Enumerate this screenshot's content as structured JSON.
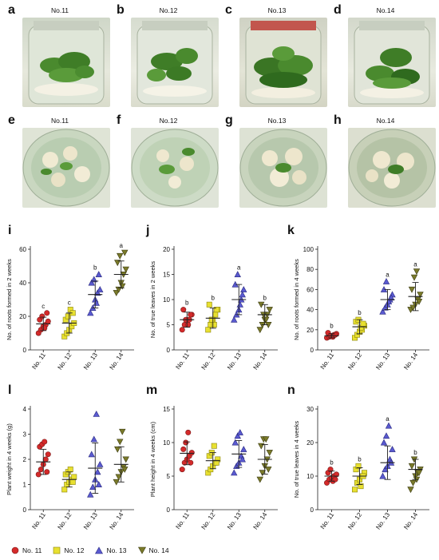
{
  "panel_letters": [
    "a",
    "b",
    "c",
    "d",
    "e",
    "f",
    "g",
    "h",
    "i",
    "j",
    "k",
    "l",
    "m",
    "n"
  ],
  "photo_captions": [
    "No.11",
    "No.12",
    "No.13",
    "No.14",
    "No.11",
    "No.12",
    "No.13",
    "No.14"
  ],
  "colors": {
    "No. 11": "#d42a2a",
    "No. 12": "#e8e030",
    "No. 13": "#5a5ad0",
    "No. 14": "#7a7a2a"
  },
  "legend": [
    {
      "label": "No. 11",
      "shape": "circle",
      "color": "#d42a2a"
    },
    {
      "label": "No. 12",
      "shape": "square",
      "color": "#e8e030"
    },
    {
      "label": "No. 13",
      "shape": "triangle-up",
      "color": "#5a5ad0"
    },
    {
      "label": "No. 14",
      "shape": "triangle-down",
      "color": "#7a7a2a"
    }
  ],
  "chart_data": [
    {
      "id": "i",
      "type": "scatter",
      "ylabel": "No. of roots formed in 2 weeks",
      "ylim": [
        0,
        60
      ],
      "yticks": [
        0,
        20,
        40,
        60
      ],
      "categories": [
        "No. 11",
        "No. 12",
        "No. 13",
        "No. 14"
      ],
      "letters": [
        "c",
        "c",
        "b",
        "a"
      ],
      "series": [
        {
          "name": "No. 11",
          "values": [
            10,
            12,
            14,
            15,
            17,
            18,
            20,
            13,
            22
          ],
          "mean": 15.5,
          "sd": 4
        },
        {
          "name": "No. 12",
          "values": [
            8,
            10,
            12,
            14,
            16,
            18,
            20,
            24,
            22
          ],
          "mean": 16,
          "sd": 6
        },
        {
          "name": "No. 13",
          "values": [
            22,
            25,
            30,
            34,
            36,
            40,
            42,
            28,
            45
          ],
          "mean": 33,
          "sd": 8
        },
        {
          "name": "No. 14",
          "values": [
            34,
            36,
            40,
            45,
            48,
            52,
            56,
            38,
            58
          ],
          "mean": 45,
          "sd": 8
        }
      ]
    },
    {
      "id": "j",
      "type": "scatter",
      "ylabel": "No. of true leaves in 2 weeks",
      "ylim": [
        0,
        20
      ],
      "yticks": [
        0,
        5,
        10,
        15,
        20
      ],
      "categories": [
        "No. 11",
        "No. 12",
        "No. 13",
        "No. 14"
      ],
      "letters": [
        "b",
        "b",
        "a",
        "b"
      ],
      "series": [
        {
          "name": "No. 11",
          "values": [
            4,
            5,
            6,
            6,
            7,
            8,
            6,
            5,
            7
          ],
          "mean": 6,
          "sd": 1.5
        },
        {
          "name": "No. 12",
          "values": [
            4,
            5,
            6,
            7,
            8,
            9,
            6,
            5,
            8
          ],
          "mean": 6.3,
          "sd": 2
        },
        {
          "name": "No. 13",
          "values": [
            6,
            7,
            8,
            10,
            12,
            13,
            15,
            9,
            11
          ],
          "mean": 10,
          "sd": 3
        },
        {
          "name": "No. 14",
          "values": [
            4,
            5,
            6,
            7,
            8,
            9,
            7,
            6,
            5
          ],
          "mean": 7,
          "sd": 2
        }
      ]
    },
    {
      "id": "k",
      "type": "scatter",
      "ylabel": "No. of roots formed in 4 weeks",
      "ylim": [
        0,
        100
      ],
      "yticks": [
        0,
        20,
        40,
        60,
        80,
        100
      ],
      "categories": [
        "No. 11",
        "No. 12",
        "No. 13",
        "No. 14"
      ],
      "letters": [
        "b",
        "b",
        "a",
        "a"
      ],
      "series": [
        {
          "name": "No. 11",
          "values": [
            12,
            13,
            14,
            15,
            16,
            17,
            14,
            13,
            15
          ],
          "mean": 14,
          "sd": 2
        },
        {
          "name": "No. 12",
          "values": [
            12,
            15,
            18,
            20,
            24,
            28,
            30,
            22,
            26
          ],
          "mean": 23,
          "sd": 7
        },
        {
          "name": "No. 13",
          "values": [
            38,
            42,
            45,
            50,
            55,
            60,
            68,
            48,
            52
          ],
          "mean": 50,
          "sd": 10
        },
        {
          "name": "No. 14",
          "values": [
            40,
            42,
            45,
            50,
            55,
            60,
            72,
            78,
            48
          ],
          "mean": 53,
          "sd": 14
        }
      ]
    },
    {
      "id": "l",
      "type": "scatter",
      "ylabel": "Plant weight in 4 weeks (g)",
      "ylim": [
        0,
        4
      ],
      "yticks": [
        0,
        1,
        2,
        3,
        4
      ],
      "categories": [
        "No. 11",
        "No. 12",
        "No. 13",
        "No. 14"
      ],
      "letters": [],
      "series": [
        {
          "name": "No. 11",
          "values": [
            1.4,
            1.6,
            1.8,
            2.0,
            2.2,
            2.5,
            2.6,
            2.7,
            1.5
          ],
          "mean": 1.9,
          "sd": 0.5
        },
        {
          "name": "No. 12",
          "values": [
            0.8,
            1.0,
            1.1,
            1.2,
            1.3,
            1.4,
            1.5,
            1.6,
            1.1
          ],
          "mean": 1.2,
          "sd": 0.3
        },
        {
          "name": "No. 13",
          "values": [
            0.6,
            0.9,
            1.2,
            1.5,
            1.8,
            2.2,
            2.8,
            3.8,
            1.0
          ],
          "mean": 1.65,
          "sd": 1.0
        },
        {
          "name": "No. 14",
          "values": [
            1.1,
            1.3,
            1.5,
            1.7,
            2.0,
            2.4,
            2.7,
            3.1,
            1.6
          ],
          "mean": 1.8,
          "sd": 0.7
        }
      ]
    },
    {
      "id": "m",
      "type": "scatter",
      "ylabel": "Plant height in 4 weeks (cm)",
      "ylim": [
        0,
        15
      ],
      "yticks": [
        0,
        5,
        10,
        15
      ],
      "categories": [
        "No. 11",
        "No. 12",
        "No. 13",
        "No. 14"
      ],
      "letters": [],
      "series": [
        {
          "name": "No. 11",
          "values": [
            6,
            7,
            7.5,
            8,
            8.5,
            9,
            10,
            11.5,
            7
          ],
          "mean": 8.4,
          "sd": 1.7
        },
        {
          "name": "No. 12",
          "values": [
            5.5,
            6,
            6.5,
            7,
            7.5,
            8,
            8.5,
            9.5,
            7
          ],
          "mean": 7.3,
          "sd": 1.2
        },
        {
          "name": "No. 13",
          "values": [
            5.5,
            6.5,
            7,
            8,
            9,
            10,
            11,
            11.5,
            7.5
          ],
          "mean": 8.3,
          "sd": 2
        },
        {
          "name": "No. 14",
          "values": [
            4.5,
            5.5,
            6.5,
            7.5,
            8.5,
            9.5,
            10.5,
            10.5,
            6
          ],
          "mean": 7.5,
          "sd": 2.2
        }
      ]
    },
    {
      "id": "n",
      "type": "scatter",
      "ylabel": "No. of true leaves in 4 weeks",
      "ylim": [
        0,
        30
      ],
      "yticks": [
        0,
        10,
        20,
        30
      ],
      "categories": [
        "No. 11",
        "No. 12",
        "No. 13",
        "No. 14"
      ],
      "letters": [
        "b",
        "b",
        "a",
        "b"
      ],
      "series": [
        {
          "name": "No. 11",
          "values": [
            8,
            9,
            9.5,
            10,
            10.5,
            11,
            12,
            8.5,
            9
          ],
          "mean": 10,
          "sd": 1.5
        },
        {
          "name": "No. 12",
          "values": [
            6,
            8,
            9,
            10,
            11,
            12,
            13,
            7,
            10
          ],
          "mean": 10,
          "sd": 2.5
        },
        {
          "name": "No. 13",
          "values": [
            10,
            12,
            13,
            15,
            18,
            20,
            22,
            25,
            14
          ],
          "mean": 14,
          "sd": 5
        },
        {
          "name": "No. 14",
          "values": [
            6,
            8,
            10,
            11,
            12,
            13,
            15,
            9,
            11
          ],
          "mean": 12,
          "sd": 3
        }
      ]
    }
  ]
}
